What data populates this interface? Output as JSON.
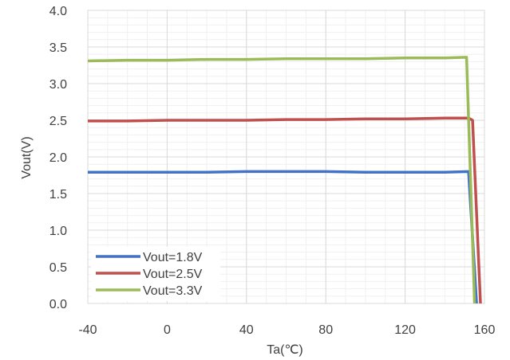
{
  "chart_data": {
    "type": "line",
    "title": "",
    "xlabel": "Ta(℃)",
    "ylabel": "Vout(V)",
    "xlim": [
      -40,
      160
    ],
    "ylim": [
      0.0,
      4.0
    ],
    "x_ticks": [
      "-40",
      "0",
      "40",
      "80",
      "120",
      "160"
    ],
    "y_ticks": [
      "0.0",
      "0.5",
      "1.0",
      "1.5",
      "2.0",
      "2.5",
      "3.0",
      "3.5",
      "4.0"
    ],
    "x_minor_step": 10,
    "y_minor_step": 0.1,
    "grid": true,
    "legend_position": "bottom-left",
    "series": [
      {
        "name": "Vout=1.8V",
        "color": "#4472c4",
        "x": [
          -40,
          0,
          20,
          40,
          60,
          80,
          100,
          120,
          140,
          152,
          156
        ],
        "y": [
          1.79,
          1.79,
          1.79,
          1.8,
          1.8,
          1.8,
          1.79,
          1.79,
          1.79,
          1.8,
          0.0
        ]
      },
      {
        "name": "Vout=2.5V",
        "color": "#c0504d",
        "x": [
          -40,
          -20,
          0,
          20,
          40,
          60,
          80,
          100,
          120,
          140,
          152,
          154,
          158
        ],
        "y": [
          2.49,
          2.49,
          2.5,
          2.5,
          2.5,
          2.51,
          2.51,
          2.52,
          2.52,
          2.53,
          2.53,
          2.5,
          0.0
        ]
      },
      {
        "name": "Vout=3.3V",
        "color": "#9bbb59",
        "x": [
          -40,
          -20,
          0,
          20,
          40,
          60,
          80,
          100,
          120,
          140,
          151,
          155
        ],
        "y": [
          3.31,
          3.32,
          3.32,
          3.33,
          3.33,
          3.34,
          3.34,
          3.34,
          3.35,
          3.35,
          3.36,
          0.0
        ]
      }
    ]
  }
}
